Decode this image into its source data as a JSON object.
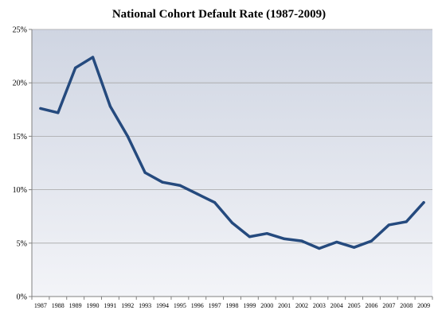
{
  "colors": {
    "plot_background_top": "#cfd5e2",
    "plot_background_bottom": "#f3f4f8",
    "line": "#254a7e",
    "grid": "#a6a6a6",
    "axis": "#808080"
  },
  "chart_data": {
    "type": "line",
    "title": "National Cohort Default Rate (1987-2009)",
    "xlabel": "",
    "ylabel": "",
    "x": [
      "1987",
      "1988",
      "1989",
      "1990",
      "1991",
      "1992",
      "1993",
      "1994",
      "1995",
      "1996",
      "1997",
      "1998",
      "1999",
      "2000",
      "2001",
      "2002",
      "2003",
      "2004",
      "2005",
      "2006",
      "2007",
      "2008",
      "2009"
    ],
    "series": [
      {
        "values": [
          17.6,
          17.2,
          21.4,
          22.4,
          17.8,
          15.0,
          11.6,
          10.7,
          10.4,
          9.6,
          8.8,
          6.9,
          5.6,
          5.9,
          5.4,
          5.2,
          4.5,
          5.1,
          4.6,
          5.2,
          6.7,
          7.0,
          8.8
        ]
      }
    ],
    "ylim": [
      0,
      25
    ],
    "yticks": [
      0,
      5,
      10,
      15,
      20,
      25
    ],
    "ytick_labels": [
      "0%",
      "5%",
      "10%",
      "15%",
      "20%",
      "25%"
    ],
    "grid": true,
    "legend": "none"
  }
}
